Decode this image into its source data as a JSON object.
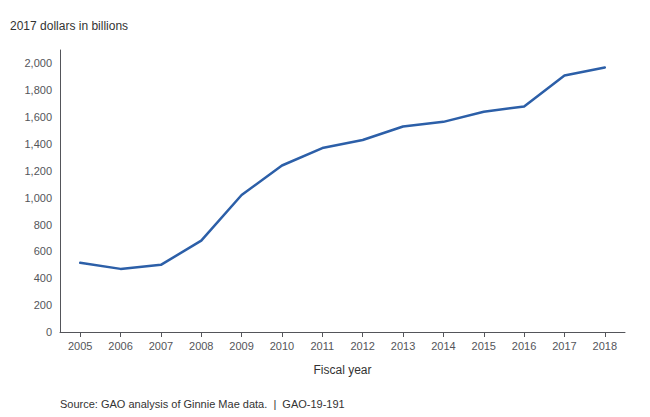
{
  "chart_data": {
    "type": "line",
    "ylabel": "2017 dollars in billions",
    "xlabel": "Fiscal year",
    "annotations": [
      "Source: GAO analysis of Ginnie Mae data.  |  GAO-19-191"
    ],
    "x": [
      2005,
      2006,
      2007,
      2008,
      2009,
      2010,
      2011,
      2012,
      2013,
      2014,
      2015,
      2016,
      2017,
      2018
    ],
    "values": [
      515,
      470,
      500,
      680,
      1020,
      1240,
      1370,
      1430,
      1530,
      1565,
      1640,
      1680,
      1910,
      1970
    ],
    "color": "#2c5fa8",
    "xlim": [
      2004.5,
      2018.5
    ],
    "xticks": [
      2005,
      2006,
      2007,
      2008,
      2009,
      2010,
      2011,
      2012,
      2013,
      2014,
      2015,
      2016,
      2017,
      2018
    ],
    "ylim": [
      0,
      2100
    ],
    "yticks": [
      0,
      200,
      400,
      600,
      800,
      {
        "value": 1000,
        "label": "1,000"
      },
      {
        "value": 1200,
        "label": "1,200"
      },
      {
        "value": 1400,
        "label": "1,400"
      },
      {
        "value": 1600,
        "label": "1,600"
      },
      {
        "value": 1800,
        "label": "1,800"
      },
      {
        "value": 2000,
        "label": "2,000"
      }
    ],
    "grid": false
  }
}
